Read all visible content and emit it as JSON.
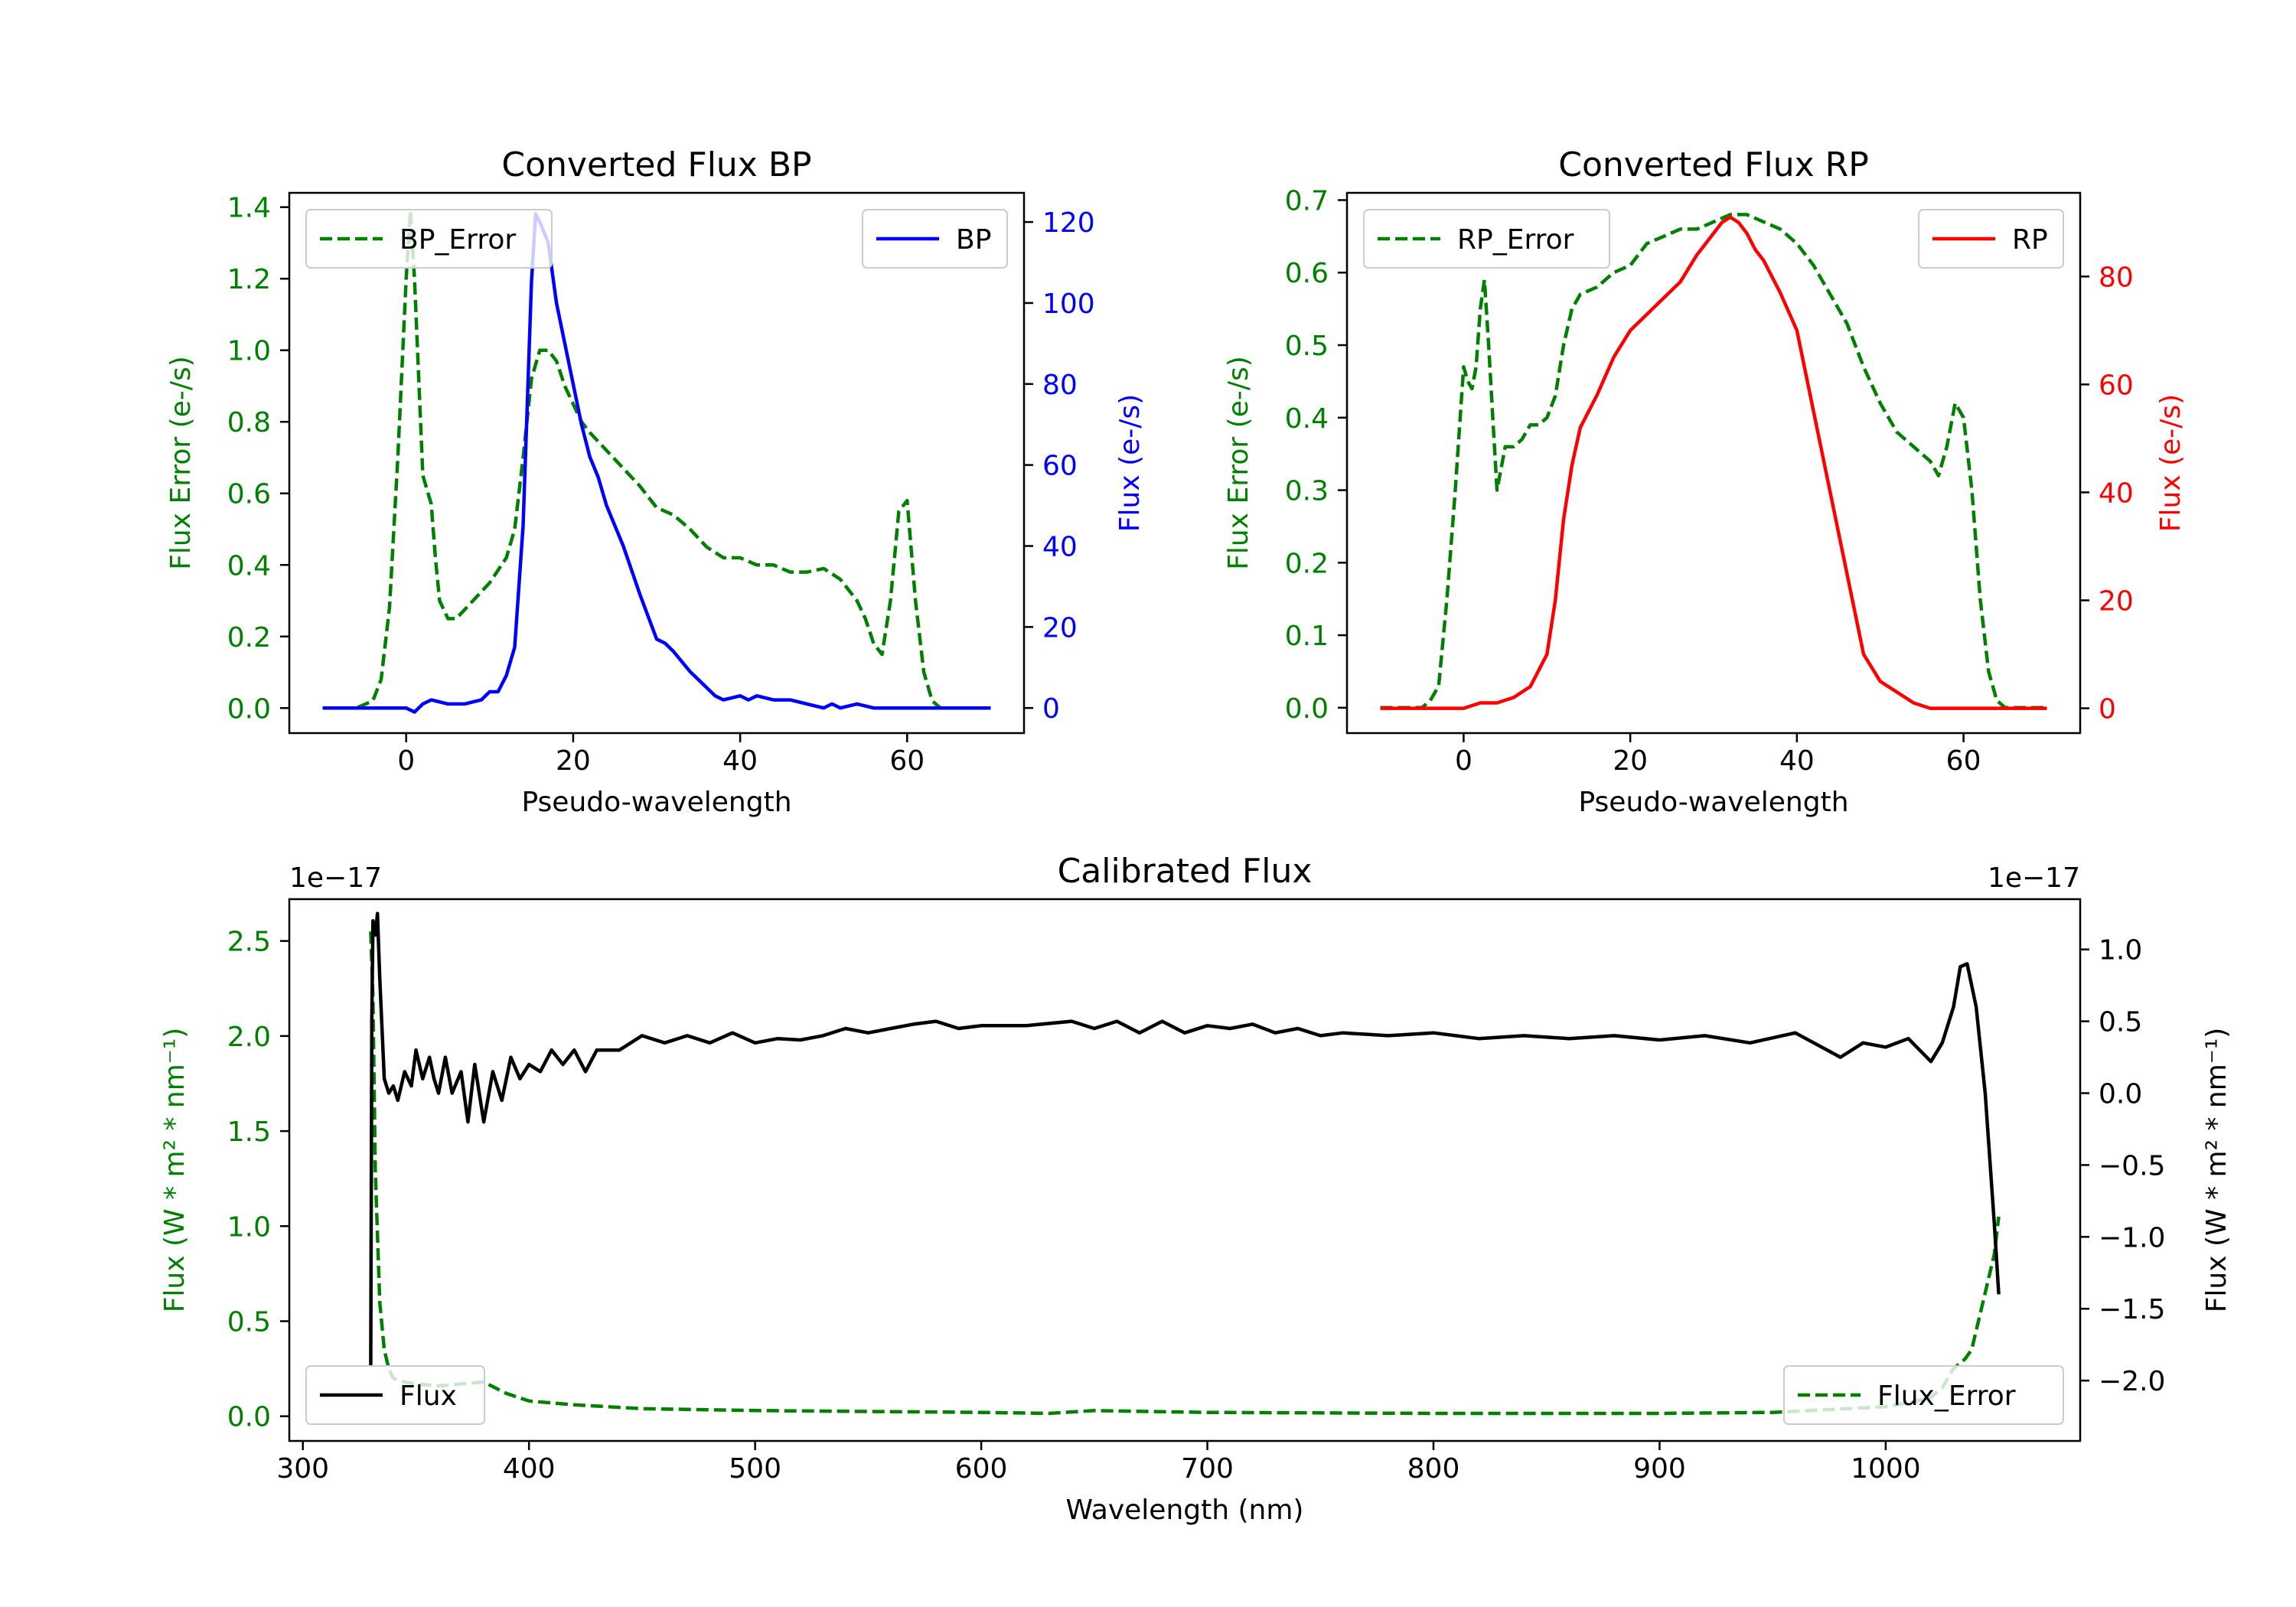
{
  "colors": {
    "error": "#008000",
    "bp": "#0000ff",
    "rp": "#ff0000",
    "flux": "#000000",
    "axis": "#000000"
  },
  "chart_data": [
    {
      "id": "bp",
      "type": "line",
      "title": "Converted Flux BP",
      "xlabel": "Pseudo-wavelength",
      "ylabel_left": "Flux Error (e-/s)",
      "ylabel_right": "Flux (e-/s)",
      "xlim": [
        -14,
        74
      ],
      "ylim_left": [
        -0.07,
        1.44
      ],
      "ylim_right": [
        -6.2,
        127.2
      ],
      "xticks": [
        0,
        20,
        40,
        60
      ],
      "yticks_left": [
        "0.0",
        "0.2",
        "0.4",
        "0.6",
        "0.8",
        "1.0",
        "1.2",
        "1.4"
      ],
      "yticks_right": [
        "0",
        "20",
        "40",
        "60",
        "80",
        "100",
        "120"
      ],
      "legend_left": {
        "label": "BP_Error",
        "placement": "upper left",
        "style": "dashed"
      },
      "legend_right": {
        "label": "BP",
        "placement": "upper right",
        "style": "solid"
      },
      "series": [
        {
          "name": "BP_Error",
          "axis": "left",
          "style": "dashed",
          "color": "#008000",
          "x": [
            -10,
            -6,
            -4,
            -3,
            -2,
            -1,
            0,
            0.5,
            1,
            2,
            3,
            3.5,
            4,
            5,
            6,
            8,
            10,
            12,
            13,
            14,
            15,
            16,
            17,
            18,
            19,
            20,
            21,
            22,
            24,
            26,
            28,
            30,
            32,
            34,
            36,
            38,
            40,
            42,
            44,
            46,
            48,
            50,
            52,
            54,
            55,
            56,
            57,
            58,
            59,
            60,
            61,
            62,
            63,
            64,
            65,
            67,
            70
          ],
          "y": [
            0.0,
            0.0,
            0.02,
            0.08,
            0.28,
            0.7,
            1.2,
            1.39,
            1.2,
            0.65,
            0.57,
            0.42,
            0.3,
            0.25,
            0.25,
            0.3,
            0.35,
            0.42,
            0.5,
            0.7,
            0.92,
            1.0,
            1.0,
            0.97,
            0.9,
            0.85,
            0.8,
            0.77,
            0.72,
            0.67,
            0.62,
            0.56,
            0.54,
            0.5,
            0.45,
            0.42,
            0.42,
            0.4,
            0.4,
            0.38,
            0.38,
            0.39,
            0.36,
            0.3,
            0.25,
            0.18,
            0.15,
            0.3,
            0.55,
            0.58,
            0.3,
            0.1,
            0.02,
            0.0,
            0.0,
            0.0,
            0.0
          ]
        },
        {
          "name": "BP",
          "axis": "right",
          "style": "solid",
          "color": "#0000ff",
          "x": [
            -10,
            -5,
            0,
            1,
            2,
            3,
            5,
            7,
            9,
            10,
            11,
            12,
            13,
            14,
            15,
            15.5,
            16,
            17,
            18,
            19,
            20,
            21,
            22,
            23,
            24,
            26,
            28,
            30,
            31,
            32,
            34,
            36,
            37,
            38,
            40,
            41,
            42,
            44,
            46,
            48,
            50,
            51,
            52,
            54,
            56,
            60,
            65,
            70
          ],
          "y": [
            0,
            0,
            0,
            -1,
            1,
            2,
            1,
            1,
            2,
            4,
            4,
            8,
            15,
            45,
            105,
            122,
            120,
            115,
            100,
            90,
            80,
            70,
            62,
            57,
            50,
            40,
            28,
            17,
            16,
            14,
            9,
            5,
            3,
            2,
            3,
            2,
            3,
            2,
            2,
            1,
            0,
            1,
            0,
            1,
            0,
            0,
            0,
            0
          ]
        }
      ]
    },
    {
      "id": "rp",
      "type": "line",
      "title": "Converted Flux RP",
      "xlabel": "Pseudo-wavelength",
      "ylabel_left": "Flux Error (e-/s)",
      "ylabel_right": "Flux (e-/s)",
      "xlim": [
        -14,
        74
      ],
      "ylim_left": [
        -0.035,
        0.71
      ],
      "ylim_right": [
        -4.6,
        95.5
      ],
      "xticks": [
        0,
        20,
        40,
        60
      ],
      "yticks_left": [
        "0.0",
        "0.1",
        "0.2",
        "0.3",
        "0.4",
        "0.5",
        "0.6",
        "0.7"
      ],
      "yticks_right": [
        "0",
        "20",
        "40",
        "60",
        "80"
      ],
      "legend_left": {
        "label": "RP_Error",
        "placement": "upper left",
        "style": "dashed"
      },
      "legend_right": {
        "label": "RP",
        "placement": "upper right",
        "style": "solid"
      },
      "series": [
        {
          "name": "RP_Error",
          "axis": "left",
          "style": "dashed",
          "color": "#008000",
          "x": [
            -10,
            -5,
            -4,
            -3,
            -2,
            -1,
            0,
            0.5,
            1,
            1.5,
            2,
            2.5,
            3,
            3.5,
            4,
            5,
            6,
            7,
            8,
            9,
            10,
            11,
            12,
            13,
            14,
            16,
            18,
            20,
            22,
            24,
            26,
            28,
            30,
            32,
            34,
            36,
            38,
            40,
            42,
            44,
            46,
            48,
            50,
            52,
            54,
            56,
            57,
            58,
            59,
            60,
            61,
            62,
            63,
            64,
            65,
            67,
            70
          ],
          "y": [
            0.0,
            0.0,
            0.01,
            0.03,
            0.15,
            0.3,
            0.47,
            0.45,
            0.44,
            0.47,
            0.55,
            0.59,
            0.5,
            0.4,
            0.3,
            0.36,
            0.36,
            0.37,
            0.39,
            0.39,
            0.4,
            0.43,
            0.5,
            0.55,
            0.57,
            0.58,
            0.6,
            0.61,
            0.64,
            0.65,
            0.66,
            0.66,
            0.67,
            0.68,
            0.68,
            0.67,
            0.66,
            0.64,
            0.61,
            0.57,
            0.53,
            0.47,
            0.42,
            0.38,
            0.36,
            0.34,
            0.32,
            0.36,
            0.42,
            0.4,
            0.3,
            0.15,
            0.05,
            0.01,
            0.0,
            0.0,
            0.0
          ]
        },
        {
          "name": "RP",
          "axis": "right",
          "style": "solid",
          "color": "#ff0000",
          "x": [
            -10,
            -5,
            0,
            2,
            4,
            6,
            8,
            9,
            10,
            11,
            12,
            13,
            14,
            15,
            16,
            18,
            20,
            22,
            24,
            26,
            28,
            30,
            31,
            32,
            33,
            34,
            35,
            36,
            38,
            40,
            42,
            44,
            46,
            48,
            50,
            52,
            54,
            56,
            60,
            65,
            70
          ],
          "y": [
            0,
            0,
            0,
            1,
            1,
            2,
            4,
            7,
            10,
            20,
            35,
            45,
            52,
            55,
            58,
            65,
            70,
            73,
            76,
            79,
            84,
            88,
            90,
            91,
            90,
            88,
            85,
            83,
            77,
            70,
            55,
            40,
            25,
            10,
            5,
            3,
            1,
            0,
            0,
            0,
            0
          ]
        }
      ]
    },
    {
      "id": "cal",
      "type": "line",
      "title": "Calibrated Flux",
      "xlabel": "Wavelength (nm)",
      "ylabel_left": "Flux (W * m² * nm⁻¹)",
      "ylabel_right": "Flux (W * m² * nm⁻¹)",
      "offset_left": "1e−17",
      "offset_right": "1e−17",
      "xlim": [
        294,
        1086
      ],
      "ylim_left": [
        -0.13,
        2.72
      ],
      "ylim_right": [
        -2.42,
        1.35
      ],
      "xticks": [
        300,
        400,
        500,
        600,
        700,
        800,
        900,
        1000
      ],
      "yticks_left": [
        "0.0",
        "0.5",
        "1.0",
        "1.5",
        "2.0",
        "2.5"
      ],
      "yticks_right": [
        "1.0",
        "0.5",
        "0.0",
        "−0.5",
        "−1.0",
        "−1.5",
        "−2.0"
      ],
      "legend_left": {
        "label": "Flux",
        "placement": "lower left",
        "style": "solid"
      },
      "legend_right": {
        "label": "Flux_Error",
        "placement": "lower right",
        "style": "dashed"
      },
      "series": [
        {
          "name": "Flux_Error",
          "axis": "left",
          "style": "dashed",
          "color": "#008000",
          "x": [
            330,
            331,
            332,
            334,
            336,
            338,
            340,
            345,
            350,
            360,
            370,
            380,
            390,
            400,
            420,
            450,
            500,
            550,
            600,
            630,
            650,
            700,
            800,
            900,
            950,
            1000,
            1010,
            1020,
            1025,
            1030,
            1035,
            1038,
            1040,
            1042,
            1045,
            1048,
            1050
          ],
          "y": [
            2.55,
            2.2,
            1.3,
            0.6,
            0.35,
            0.25,
            0.2,
            0.18,
            0.17,
            0.16,
            0.17,
            0.18,
            0.12,
            0.08,
            0.06,
            0.04,
            0.03,
            0.025,
            0.02,
            0.015,
            0.03,
            0.02,
            0.015,
            0.015,
            0.02,
            0.05,
            0.07,
            0.1,
            0.15,
            0.25,
            0.3,
            0.35,
            0.45,
            0.55,
            0.7,
            0.85,
            1.05
          ]
        },
        {
          "name": "Flux",
          "axis": "right",
          "style": "solid",
          "color": "#000000",
          "x": [
            330,
            330.5,
            331,
            332,
            333,
            334,
            336,
            338,
            340,
            342,
            345,
            348,
            350,
            353,
            356,
            358,
            360,
            363,
            366,
            370,
            373,
            376,
            380,
            384,
            388,
            392,
            396,
            400,
            405,
            410,
            415,
            420,
            425,
            430,
            440,
            450,
            460,
            470,
            480,
            490,
            500,
            510,
            520,
            530,
            540,
            550,
            560,
            570,
            580,
            590,
            600,
            620,
            640,
            650,
            660,
            670,
            680,
            690,
            700,
            710,
            720,
            730,
            740,
            750,
            760,
            780,
            800,
            820,
            840,
            860,
            880,
            900,
            920,
            940,
            960,
            980,
            990,
            1000,
            1010,
            1015,
            1020,
            1025,
            1030,
            1033,
            1036,
            1040,
            1044,
            1048,
            1050
          ],
          "y": [
            -1.9,
            0.5,
            1.2,
            1.1,
            1.25,
            0.8,
            0.1,
            0.0,
            0.05,
            -0.05,
            0.15,
            0.05,
            0.3,
            0.1,
            0.25,
            0.1,
            0.0,
            0.25,
            0.0,
            0.15,
            -0.2,
            0.2,
            -0.2,
            0.15,
            -0.05,
            0.25,
            0.1,
            0.2,
            0.15,
            0.3,
            0.2,
            0.3,
            0.15,
            0.3,
            0.3,
            0.4,
            0.35,
            0.4,
            0.35,
            0.42,
            0.35,
            0.38,
            0.37,
            0.4,
            0.45,
            0.42,
            0.45,
            0.48,
            0.5,
            0.45,
            0.47,
            0.47,
            0.5,
            0.45,
            0.5,
            0.42,
            0.5,
            0.42,
            0.47,
            0.45,
            0.48,
            0.42,
            0.45,
            0.4,
            0.42,
            0.4,
            0.42,
            0.38,
            0.4,
            0.38,
            0.4,
            0.37,
            0.4,
            0.35,
            0.42,
            0.25,
            0.35,
            0.32,
            0.38,
            0.3,
            0.22,
            0.35,
            0.6,
            0.88,
            0.9,
            0.6,
            0.0,
            -0.9,
            -1.4
          ]
        }
      ]
    }
  ]
}
